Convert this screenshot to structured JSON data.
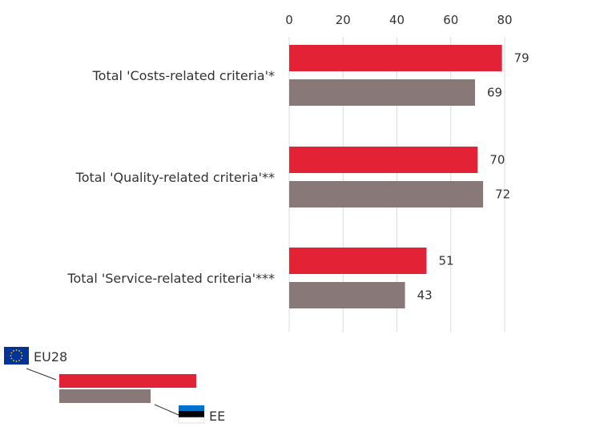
{
  "chart_data": {
    "type": "bar",
    "orientation": "horizontal",
    "categories": [
      "Total 'Costs-related criteria'*",
      "Total 'Quality-related criteria'**",
      "Total 'Service-related criteria'***"
    ],
    "series": [
      {
        "name": "EU28",
        "values": [
          79,
          70,
          51
        ],
        "color": "#e32236"
      },
      {
        "name": "EE",
        "values": [
          69,
          72,
          43
        ],
        "color": "#897878"
      }
    ],
    "xlim": [
      0,
      80
    ],
    "xticks": [
      0,
      20,
      40,
      60,
      80
    ],
    "xaxis_position": "top",
    "grid": true,
    "legend_placement": "bottom-left",
    "legend_icons": [
      "eu-flag-icon",
      "estonia-flag-icon"
    ]
  }
}
